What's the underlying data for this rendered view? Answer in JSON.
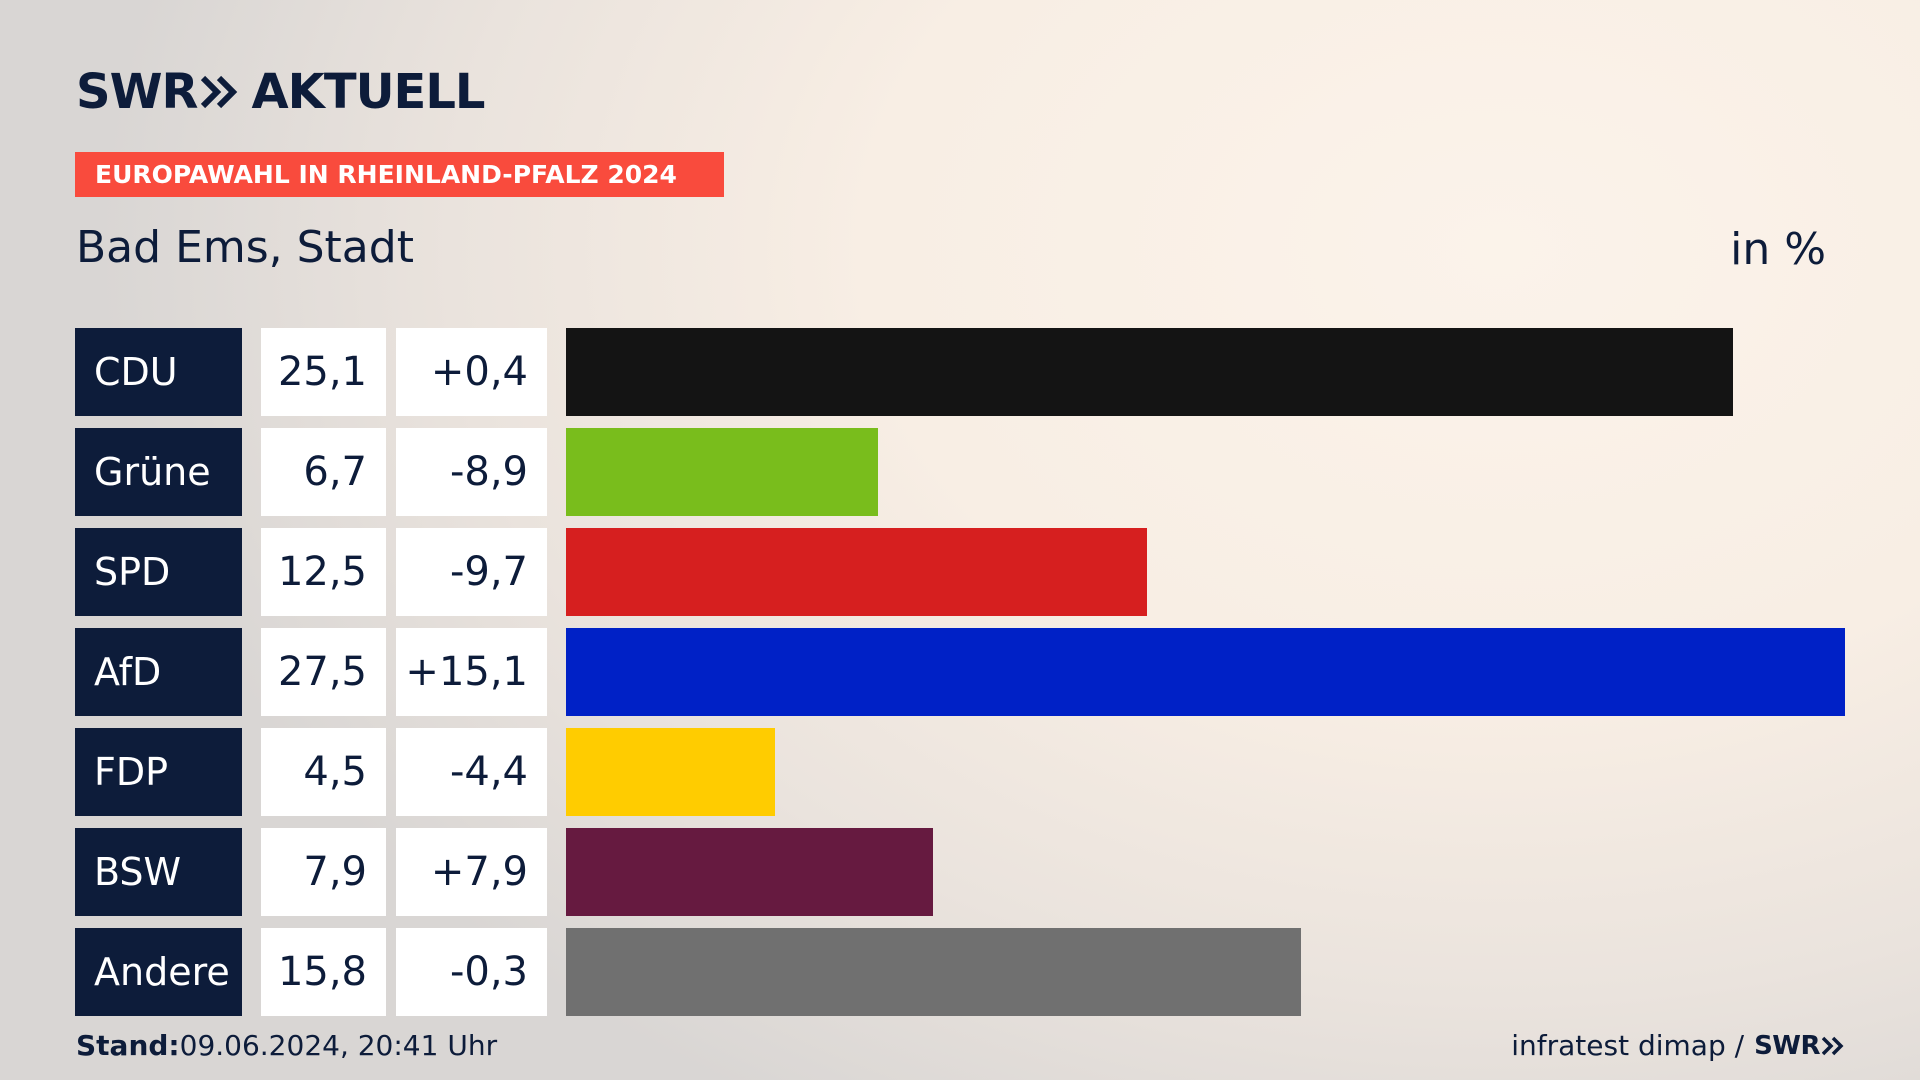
{
  "brand": {
    "left": "SWR",
    "right": "AKTUELL"
  },
  "banner": "EUROPAWAHL IN RHEINLAND-PFALZ 2024",
  "region": "Bad Ems, Stadt",
  "unit": "in %",
  "footer": {
    "stand_label": "Stand:",
    "stand_value": "09.06.2024, 20:41 Uhr",
    "source": "infratest dimap /",
    "source_brand": "SWR"
  },
  "colors": {
    "navy": "#0d1c3a",
    "banner": "#f94b3d"
  },
  "chart_data": {
    "type": "bar",
    "orientation": "horizontal",
    "categories": [
      "CDU",
      "Grüne",
      "SPD",
      "AfD",
      "FDP",
      "BSW",
      "Andere"
    ],
    "values": [
      25.1,
      6.7,
      12.5,
      27.5,
      4.5,
      7.9,
      15.8
    ],
    "value_labels": [
      "25,1",
      "6,7",
      "12,5",
      "27,5",
      "4,5",
      "7,9",
      "15,8"
    ],
    "diff_labels": [
      "+0,4",
      "-8,9",
      "-9,7",
      "+15,1",
      "-4,4",
      "+7,9",
      "-0,3"
    ],
    "bar_colors": [
      "#141414",
      "#79bd1c",
      "#d61f1f",
      "#0021c6",
      "#ffcc00",
      "#661a40",
      "#707070"
    ],
    "xlim": [
      0,
      27.5
    ],
    "grid": false
  }
}
